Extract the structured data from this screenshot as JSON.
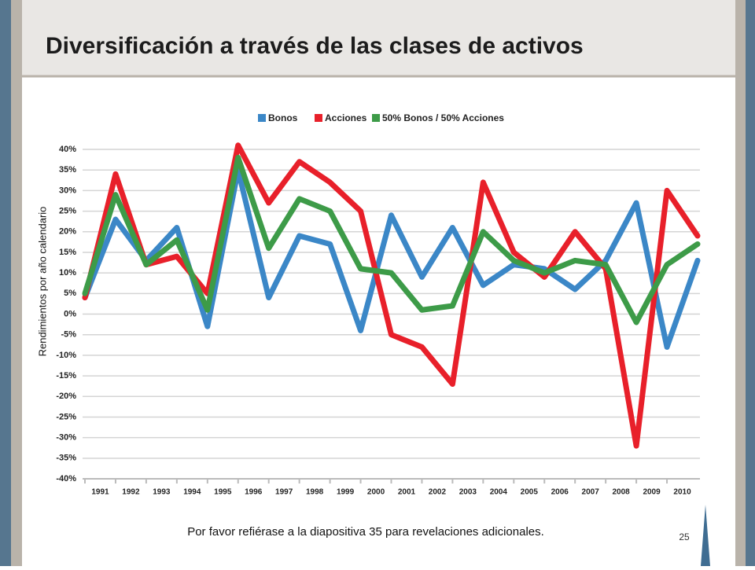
{
  "title": "Diversificación a través de las clases de activos",
  "chart_data": {
    "type": "line",
    "y_label": "Rendimientos por año calendario",
    "categories": [
      "1991",
      "1992",
      "1993",
      "1994",
      "1995",
      "1996",
      "1997",
      "1998",
      "1999",
      "2000",
      "2001",
      "2002",
      "2003",
      "2004",
      "2005",
      "2006",
      "2007",
      "2008",
      "2009",
      "2010",
      null
    ],
    "series": [
      {
        "name": "Bonos",
        "color": "#3b87c7",
        "values": [
          4,
          23,
          13,
          21,
          -3,
          35,
          4,
          19,
          17,
          -4,
          24,
          9,
          21,
          7,
          12,
          11,
          6,
          13,
          27,
          -8,
          13
        ]
      },
      {
        "name": "Acciones",
        "color": "#e8202a",
        "values": [
          4,
          34,
          12,
          14,
          5,
          41,
          27,
          37,
          32,
          25,
          -5,
          -8,
          -17,
          32,
          15,
          9,
          20,
          11,
          -32,
          30,
          19
        ]
      },
      {
        "name": "50% Bonos / 50% Acciones",
        "color": "#3d9b48",
        "values": [
          5,
          29,
          12,
          18,
          1,
          38,
          16,
          28,
          25,
          11,
          10,
          1,
          2,
          20,
          13,
          10,
          13,
          12,
          -2,
          12,
          17
        ]
      }
    ],
    "ylim": [
      -40,
      40
    ],
    "yticks": [
      {
        "value": 40,
        "label": "40%"
      },
      {
        "value": 35,
        "label": "35%"
      },
      {
        "value": 30,
        "label": "30%"
      },
      {
        "value": 25,
        "label": "25%"
      },
      {
        "value": 20,
        "label": "20%"
      },
      {
        "value": 15,
        "label": "15%"
      },
      {
        "value": 10,
        "label": "10%"
      },
      {
        "value": 5,
        "label": "5%"
      },
      {
        "value": 0,
        "label": "0%"
      },
      {
        "value": -5,
        "label": "-5%"
      },
      {
        "value": -10,
        "label": "-10%"
      },
      {
        "value": -15,
        "label": "-15%"
      },
      {
        "value": -20,
        "label": "-20%"
      },
      {
        "value": -25,
        "label": "-25%"
      },
      {
        "value": -30,
        "label": "-30%"
      },
      {
        "value": -35,
        "label": "-35%"
      },
      {
        "value": -40,
        "label": "-40%"
      }
    ],
    "grid": true
  },
  "footnote": "Por favor refiérase a la diapositiva 35 para revelaciones adicionales.",
  "page_number": "25"
}
